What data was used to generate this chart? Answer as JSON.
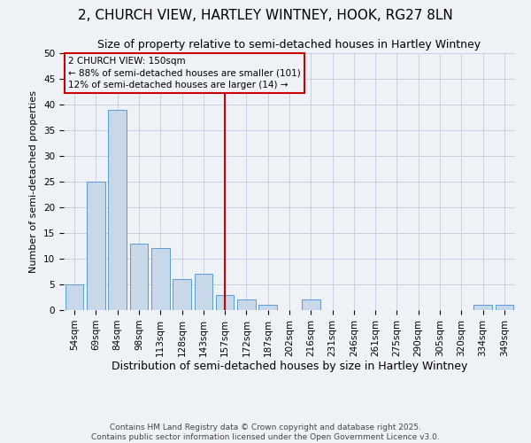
{
  "title": "2, CHURCH VIEW, HARTLEY WINTNEY, HOOK, RG27 8LN",
  "subtitle": "Size of property relative to semi-detached houses in Hartley Wintney",
  "xlabel": "Distribution of semi-detached houses by size in Hartley Wintney",
  "ylabel": "Number of semi-detached properties",
  "categories": [
    "54sqm",
    "69sqm",
    "84sqm",
    "98sqm",
    "113sqm",
    "128sqm",
    "143sqm",
    "157sqm",
    "172sqm",
    "187sqm",
    "202sqm",
    "216sqm",
    "231sqm",
    "246sqm",
    "261sqm",
    "275sqm",
    "290sqm",
    "305sqm",
    "320sqm",
    "334sqm",
    "349sqm"
  ],
  "values": [
    5,
    25,
    39,
    13,
    12,
    6,
    7,
    3,
    2,
    1,
    0,
    2,
    0,
    0,
    0,
    0,
    0,
    0,
    0,
    1,
    1
  ],
  "bar_color": "#c8d8e8",
  "bar_edge_color": "#5b9bd5",
  "vline_x_index": 7,
  "vline_color": "#cc0000",
  "annotation_text": "2 CHURCH VIEW: 150sqm\n← 88% of semi-detached houses are smaller (101)\n12% of semi-detached houses are larger (14) →",
  "annotation_box_color": "#cc0000",
  "ylim": [
    0,
    50
  ],
  "yticks": [
    0,
    5,
    10,
    15,
    20,
    25,
    30,
    35,
    40,
    45,
    50
  ],
  "background_color": "#eef2f7",
  "footer_text": "Contains HM Land Registry data © Crown copyright and database right 2025.\nContains public sector information licensed under the Open Government Licence v3.0.",
  "title_fontsize": 11,
  "subtitle_fontsize": 9,
  "xlabel_fontsize": 9,
  "ylabel_fontsize": 8,
  "tick_fontsize": 7.5,
  "footer_fontsize": 6.5,
  "grid_color": "#b0b8d0"
}
